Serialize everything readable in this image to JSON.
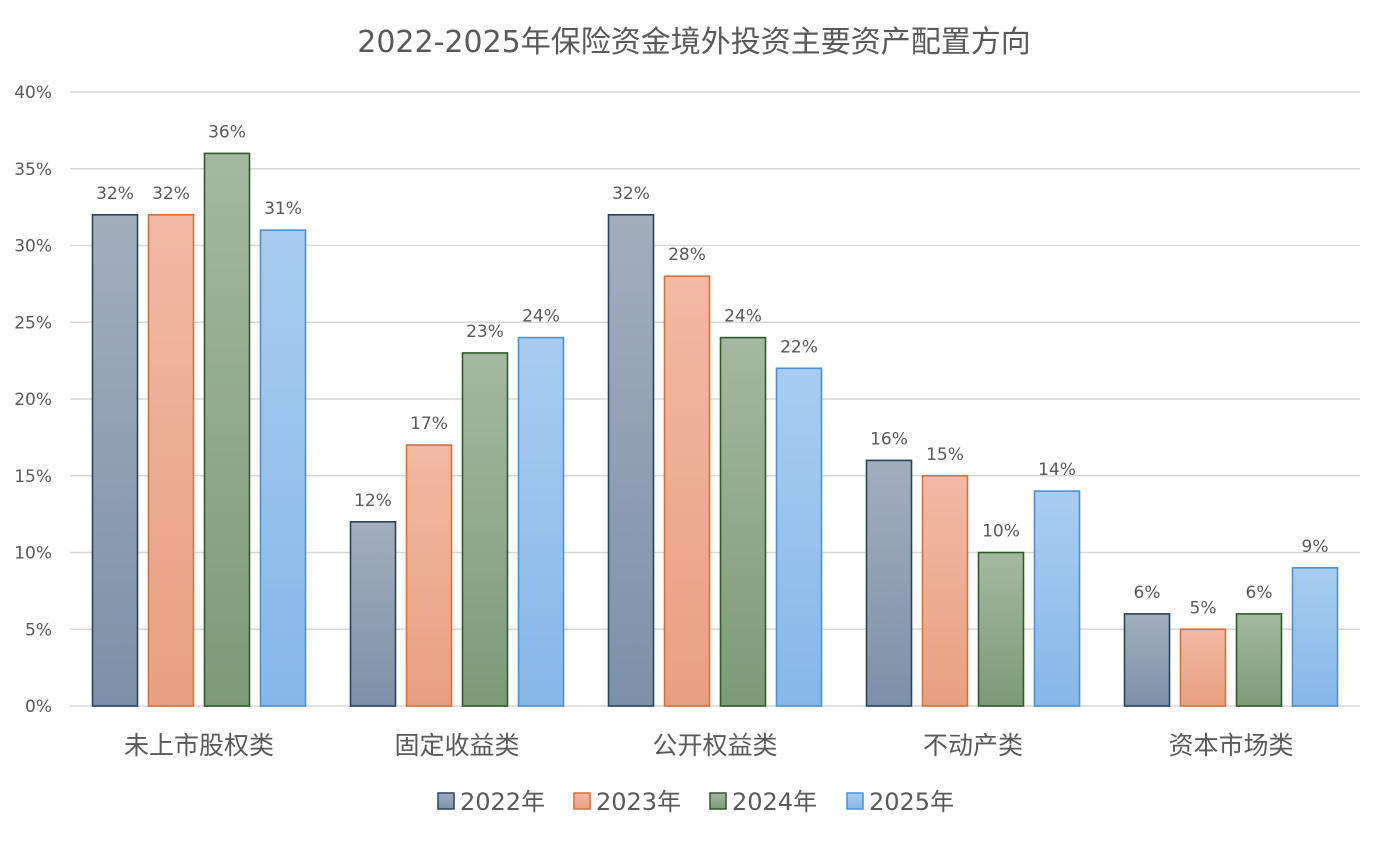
{
  "chart_data": {
    "type": "bar",
    "title": "2022-2025年保险资金境外投资主要资产配置方向",
    "xlabel": "",
    "ylabel": "",
    "categories": [
      "未上市股权类",
      "固定收益类",
      "公开权益类",
      "不动产类",
      "资本市场类"
    ],
    "series": [
      {
        "name": "2022年",
        "values": [
          32,
          12,
          32,
          16,
          6
        ]
      },
      {
        "name": "2023年",
        "values": [
          32,
          17,
          28,
          15,
          5
        ]
      },
      {
        "name": "2024年",
        "values": [
          36,
          23,
          24,
          10,
          6
        ]
      },
      {
        "name": "2025年",
        "values": [
          31,
          24,
          22,
          14,
          9
        ]
      }
    ],
    "data_labels": [
      [
        "32%",
        "12%",
        "32%",
        "16%",
        "6%"
      ],
      [
        "32%",
        "17%",
        "28%",
        "15%",
        "5%"
      ],
      [
        "36%",
        "23%",
        "24%",
        "10%",
        "6%"
      ],
      [
        "31%",
        "24%",
        "22%",
        "14%",
        "9%"
      ]
    ],
    "ylim": [
      0,
      40
    ],
    "yticks": [
      0,
      5,
      10,
      15,
      20,
      25,
      30,
      35,
      40
    ],
    "ytick_labels": [
      "0%",
      "5%",
      "10%",
      "15%",
      "20%",
      "25%",
      "30%",
      "35%",
      "40%"
    ],
    "grid": true,
    "legend_position": "bottom",
    "colors": {
      "fill_top": [
        "#a3aebd",
        "#f2b9a4",
        "#a5b8a1",
        "#a9cdf1"
      ],
      "fill_bottom": [
        "#7e90a8",
        "#e8a081",
        "#7d9a78",
        "#86b7e8"
      ],
      "stroke": [
        "#27445e",
        "#d2703e",
        "#2f5a2a",
        "#4d90d4"
      ]
    }
  }
}
